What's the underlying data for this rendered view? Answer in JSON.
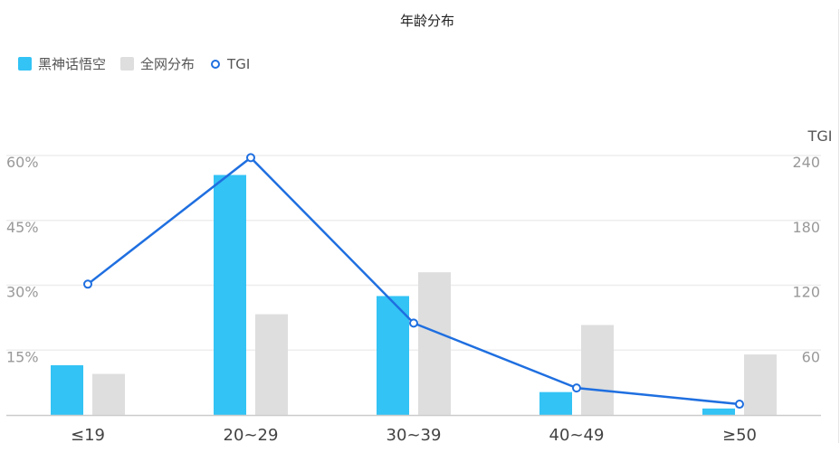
{
  "chart_data": {
    "type": "bar",
    "title": "年龄分布",
    "categories": [
      "≤19",
      "20~29",
      "30~39",
      "40~49",
      "≥50"
    ],
    "series": [
      {
        "name": "黑神话悟空",
        "type": "bar",
        "axis": "left",
        "color": "#33c3f5",
        "values": [
          11.5,
          55.5,
          27.5,
          5.3,
          1.5
        ]
      },
      {
        "name": "全网分布",
        "type": "bar",
        "axis": "left",
        "color": "#dedede",
        "values": [
          9.5,
          23.3,
          33.0,
          20.8,
          14.0
        ]
      },
      {
        "name": "TGI",
        "type": "line",
        "axis": "right",
        "color": "#1f6fe0",
        "values": [
          121,
          238,
          85,
          25,
          10
        ]
      }
    ],
    "y_left": {
      "ylim": [
        0,
        60
      ],
      "ticks": [
        0,
        15,
        30,
        45,
        60
      ],
      "tick_labels": [
        "",
        "15%",
        "30%",
        "45%",
        "60%"
      ]
    },
    "y_right": {
      "name": "TGI",
      "ylim": [
        0,
        240
      ],
      "ticks": [
        0,
        60,
        120,
        180,
        240
      ],
      "tick_labels": [
        "",
        "60",
        "120",
        "180",
        "240"
      ]
    },
    "grid": true,
    "legend_position": "top-left"
  }
}
